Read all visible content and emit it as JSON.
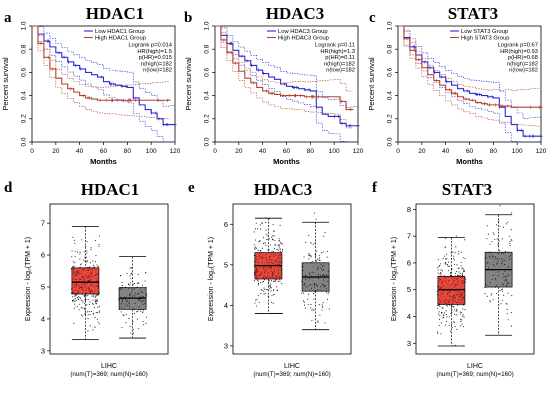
{
  "chart_data": [
    {
      "panel": "a",
      "title": "HDAC1",
      "type": "line",
      "xlabel": "Months",
      "ylabel": "Percent survival",
      "xlim": [
        0,
        120
      ],
      "ylim": [
        0,
        1
      ],
      "xticks": [
        "0",
        "20",
        "40",
        "60",
        "80",
        "100",
        "120"
      ],
      "yticks": [
        "0.0",
        "0.2",
        "0.4",
        "0.6",
        "0.8",
        "1.0"
      ],
      "legend": {
        "placement": "top-right",
        "entries": [
          "Low HDAC1 Group",
          "High HDAC1 Group"
        ],
        "stats": [
          "Logrank p=0.014",
          "HR(high)=1.5",
          "p(HR)=0.015",
          "n(high)=182",
          "n(low)=182"
        ]
      },
      "series": [
        {
          "name": "Low HDAC1 Group",
          "color": "#2a2ad8",
          "x": [
            0,
            5,
            10,
            15,
            20,
            25,
            30,
            35,
            40,
            45,
            50,
            55,
            60,
            65,
            70,
            75,
            80,
            85,
            90,
            95,
            100,
            105,
            110,
            115,
            120
          ],
          "y": [
            1,
            0.93,
            0.87,
            0.82,
            0.77,
            0.73,
            0.69,
            0.66,
            0.63,
            0.6,
            0.58,
            0.56,
            0.52,
            0.5,
            0.49,
            0.48,
            0.47,
            0.38,
            0.32,
            0.28,
            0.25,
            0.2,
            0.15,
            0.15,
            0.15
          ]
        },
        {
          "name": "High HDAC1 Group",
          "color": "#b5442a",
          "x": [
            0,
            5,
            10,
            15,
            20,
            25,
            30,
            35,
            40,
            45,
            50,
            55,
            60,
            65,
            70,
            75,
            80,
            85,
            90,
            95,
            100,
            105,
            110,
            115
          ],
          "y": [
            1,
            0.85,
            0.73,
            0.63,
            0.55,
            0.5,
            0.46,
            0.43,
            0.4,
            0.38,
            0.37,
            0.36,
            0.36,
            0.36,
            0.36,
            0.36,
            0.36,
            0.36,
            0.36,
            0.36,
            0.36,
            0.36,
            0.36,
            0.36
          ]
        }
      ]
    },
    {
      "panel": "b",
      "title": "HDAC3",
      "type": "line",
      "xlabel": "Months",
      "ylabel": "Percent survival",
      "xlim": [
        0,
        120
      ],
      "ylim": [
        0,
        1
      ],
      "xticks": [
        "0",
        "20",
        "40",
        "60",
        "80",
        "100",
        "120"
      ],
      "yticks": [
        "0.0",
        "0.2",
        "0.4",
        "0.6",
        "0.8",
        "1.0"
      ],
      "legend": {
        "placement": "top-right",
        "entries": [
          "Low HDAC3 Group",
          "High HDAC3 Group"
        ],
        "stats": [
          "Logrank p=0.11",
          "HR(high)=1.3",
          "p(HR)=0.11",
          "n(high)=182",
          "n(low)=182"
        ]
      },
      "series": [
        {
          "name": "Low HDAC3 Group",
          "color": "#2a2ad8",
          "x": [
            0,
            5,
            10,
            15,
            20,
            25,
            30,
            35,
            40,
            45,
            50,
            55,
            60,
            65,
            70,
            75,
            80,
            85,
            90,
            95,
            100,
            105,
            110,
            115,
            120
          ],
          "y": [
            1,
            0.92,
            0.85,
            0.79,
            0.74,
            0.7,
            0.66,
            0.62,
            0.59,
            0.56,
            0.54,
            0.5,
            0.48,
            0.47,
            0.46,
            0.45,
            0.44,
            0.3,
            0.24,
            0.22,
            0.22,
            0.16,
            0.14,
            0.14,
            0.14
          ]
        },
        {
          "name": "High HDAC3 Group",
          "color": "#b5442a",
          "x": [
            0,
            5,
            10,
            15,
            20,
            25,
            30,
            35,
            40,
            45,
            50,
            55,
            60,
            65,
            70,
            75,
            80,
            85,
            90,
            95,
            100,
            105,
            110,
            115
          ],
          "y": [
            1,
            0.88,
            0.77,
            0.68,
            0.61,
            0.55,
            0.51,
            0.47,
            0.44,
            0.42,
            0.41,
            0.4,
            0.4,
            0.4,
            0.4,
            0.39,
            0.39,
            0.39,
            0.39,
            0.39,
            0.39,
            0.35,
            0.28,
            0.28
          ]
        }
      ]
    },
    {
      "panel": "c",
      "title": "STAT3",
      "type": "line",
      "xlabel": "Months",
      "ylabel": "Percent survival",
      "xlim": [
        0,
        120
      ],
      "ylim": [
        0,
        1
      ],
      "xticks": [
        "0",
        "20",
        "40",
        "60",
        "80",
        "100",
        "120"
      ],
      "yticks": [
        "0.0",
        "0.2",
        "0.4",
        "0.6",
        "0.8",
        "1.0"
      ],
      "legend": {
        "placement": "top-right",
        "entries": [
          "Low STAT3 Group",
          "High STAT3 Group"
        ],
        "stats": [
          "Logrank p=0.67",
          "HR(high)=0.93",
          "p(HR)=0.68",
          "n(high)=182",
          "n(low)=182"
        ]
      },
      "series": [
        {
          "name": "Low STAT3 Group",
          "color": "#2a2ad8",
          "x": [
            0,
            5,
            10,
            15,
            20,
            25,
            30,
            35,
            40,
            45,
            50,
            55,
            60,
            65,
            70,
            75,
            80,
            85,
            90,
            95,
            100,
            105,
            110,
            115,
            120
          ],
          "y": [
            1,
            0.9,
            0.82,
            0.75,
            0.69,
            0.64,
            0.6,
            0.56,
            0.52,
            0.49,
            0.46,
            0.44,
            0.42,
            0.41,
            0.4,
            0.39,
            0.38,
            0.3,
            0.22,
            0.15,
            0.1,
            0.05,
            0.05,
            0.05,
            0.05
          ]
        },
        {
          "name": "High STAT3 Group",
          "color": "#b5442a",
          "x": [
            0,
            5,
            10,
            15,
            20,
            25,
            30,
            35,
            40,
            45,
            50,
            55,
            60,
            65,
            70,
            75,
            80,
            85,
            90,
            95,
            100,
            105,
            110,
            115,
            120
          ],
          "y": [
            1,
            0.89,
            0.79,
            0.71,
            0.64,
            0.58,
            0.53,
            0.49,
            0.45,
            0.42,
            0.39,
            0.37,
            0.36,
            0.34,
            0.33,
            0.32,
            0.32,
            0.31,
            0.31,
            0.3,
            0.3,
            0.3,
            0.3,
            0.3,
            0.3
          ]
        }
      ]
    },
    {
      "panel": "d",
      "title": "HDAC1",
      "type": "box",
      "ylabel": "Expression - log₂(TPM + 1)",
      "ylim": [
        2.9,
        7.6
      ],
      "yticks": [
        3,
        4,
        5,
        6,
        7
      ],
      "xlabel_lines": [
        "LIHC",
        "(num(T)=369; num(N)=160)"
      ],
      "boxes": [
        {
          "group": "T",
          "color": "#e8372c",
          "min": 3.35,
          "q1": 4.78,
          "median": 5.15,
          "q3": 5.6,
          "max": 6.9,
          "n": 369
        },
        {
          "group": "N",
          "color": "#777777",
          "min": 3.4,
          "q1": 4.3,
          "median": 4.65,
          "q3": 4.98,
          "max": 5.95,
          "n": 160
        }
      ]
    },
    {
      "panel": "e",
      "title": "HDAC3",
      "type": "box",
      "ylabel": "Expression - log₂(TPM + 1)",
      "ylim": [
        2.8,
        6.5
      ],
      "yticks": [
        3,
        4,
        5,
        6
      ],
      "xlabel_lines": [
        "LIHC",
        "(num(T)=369; num(N)=160)"
      ],
      "boxes": [
        {
          "group": "T",
          "color": "#e8372c",
          "min": 3.8,
          "q1": 4.65,
          "median": 4.98,
          "q3": 5.3,
          "max": 6.15,
          "n": 369
        },
        {
          "group": "N",
          "color": "#777777",
          "min": 3.4,
          "q1": 4.35,
          "median": 4.7,
          "q3": 5.05,
          "max": 6.05,
          "n": 160
        }
      ]
    },
    {
      "panel": "f",
      "title": "STAT3",
      "type": "box",
      "ylabel": "Expression - log₂(TPM + 1)",
      "ylim": [
        2.6,
        8.2
      ],
      "yticks": [
        3,
        4,
        5,
        6,
        7,
        8
      ],
      "xlabel_lines": [
        "LIHC",
        "(num(T)=369; num(N)=160)"
      ],
      "boxes": [
        {
          "group": "T",
          "color": "#e8372c",
          "min": 2.9,
          "q1": 4.45,
          "median": 5.0,
          "q3": 5.5,
          "max": 6.95,
          "n": 369
        },
        {
          "group": "N",
          "color": "#777777",
          "min": 3.3,
          "q1": 5.1,
          "median": 5.75,
          "q3": 6.4,
          "max": 7.8,
          "n": 160
        }
      ]
    }
  ]
}
